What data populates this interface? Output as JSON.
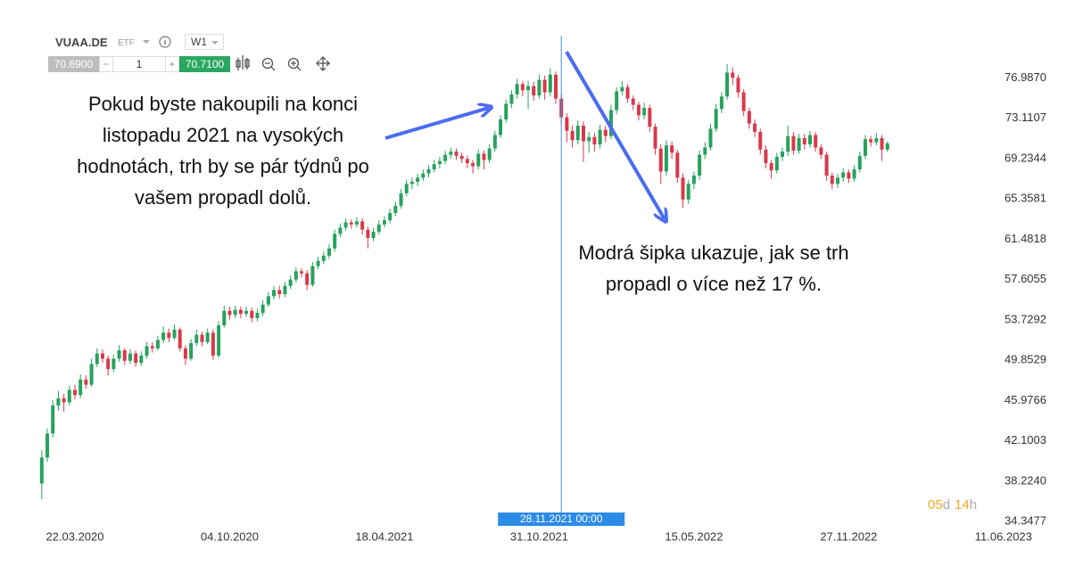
{
  "toolbar": {
    "symbol": "VUAA.DE",
    "kind": "ETF",
    "interval": "W1",
    "bid": "70.6900",
    "quantity": "1",
    "ask": "70.7100"
  },
  "chart_data": {
    "type": "candlestick",
    "up_color": "#26a25d",
    "down_color": "#d8394b",
    "xlim": [
      "2020-01-21",
      "2023-08-01"
    ],
    "xticks": [
      {
        "value": "2020-03-22",
        "label": "22.03.2020"
      },
      {
        "value": "2020-10-04",
        "label": "04.10.2020"
      },
      {
        "value": "2021-04-18",
        "label": "18.04.2021"
      },
      {
        "value": "2021-10-31",
        "label": "31.10.2021"
      },
      {
        "value": "2022-05-15",
        "label": "15.05.2022"
      },
      {
        "value": "2022-11-27",
        "label": "27.11.2022"
      },
      {
        "value": "2023-06-11",
        "label": "11.06.2023"
      }
    ],
    "ylim": [
      33.93,
      81.05
    ],
    "yticks": [
      {
        "value": 76.987,
        "label": "76.9870"
      },
      73.1107,
      69.2344,
      65.3581,
      61.4818,
      57.6055,
      53.7292,
      49.8529,
      45.9766,
      42.1003,
      {
        "value": 38.224,
        "label": "38.2240"
      },
      34.3477
    ],
    "x": [
      "2020-02-09",
      "2020-02-16",
      "2020-02-23",
      "2020-03-01",
      "2020-03-08",
      "2020-03-15",
      "2020-03-22",
      "2020-03-29",
      "2020-04-05",
      "2020-04-12",
      "2020-04-19",
      "2020-04-26",
      "2020-05-03",
      "2020-05-10",
      "2020-05-17",
      "2020-05-24",
      "2020-05-31",
      "2020-06-07",
      "2020-06-14",
      "2020-06-21",
      "2020-06-28",
      "2020-07-05",
      "2020-07-12",
      "2020-07-19",
      "2020-07-26",
      "2020-08-02",
      "2020-08-09",
      "2020-08-16",
      "2020-08-23",
      "2020-08-30",
      "2020-09-06",
      "2020-09-13",
      "2020-09-20",
      "2020-09-27",
      "2020-10-04",
      "2020-10-11",
      "2020-10-18",
      "2020-10-25",
      "2020-11-01",
      "2020-11-08",
      "2020-11-15",
      "2020-11-22",
      "2020-11-29",
      "2020-12-06",
      "2020-12-13",
      "2020-12-20",
      "2020-12-27",
      "2021-01-03",
      "2021-01-10",
      "2021-01-17",
      "2021-01-24",
      "2021-01-31",
      "2021-02-07",
      "2021-02-14",
      "2021-02-21",
      "2021-02-28",
      "2021-03-07",
      "2021-03-14",
      "2021-03-21",
      "2021-03-28",
      "2021-04-04",
      "2021-04-11",
      "2021-04-18",
      "2021-04-25",
      "2021-05-02",
      "2021-05-09",
      "2021-05-16",
      "2021-05-23",
      "2021-05-30",
      "2021-06-06",
      "2021-06-13",
      "2021-06-20",
      "2021-06-27",
      "2021-07-04",
      "2021-07-11",
      "2021-07-18",
      "2021-07-25",
      "2021-08-01",
      "2021-08-08",
      "2021-08-15",
      "2021-08-22",
      "2021-08-29",
      "2021-09-05",
      "2021-09-12",
      "2021-09-19",
      "2021-09-26",
      "2021-10-03",
      "2021-10-10",
      "2021-10-17",
      "2021-10-24",
      "2021-10-31",
      "2021-11-07",
      "2021-11-14",
      "2021-11-21",
      "2021-11-28",
      "2021-12-05",
      "2021-12-12",
      "2021-12-19",
      "2021-12-26",
      "2022-01-02",
      "2022-01-09",
      "2022-01-16",
      "2022-01-23",
      "2022-01-30",
      "2022-02-06",
      "2022-02-13",
      "2022-02-20",
      "2022-02-27",
      "2022-03-06",
      "2022-03-13",
      "2022-03-20",
      "2022-03-27",
      "2022-04-03",
      "2022-04-10",
      "2022-04-17",
      "2022-04-24",
      "2022-05-01",
      "2022-05-08",
      "2022-05-15",
      "2022-05-22",
      "2022-05-29",
      "2022-06-05",
      "2022-06-12",
      "2022-06-19",
      "2022-06-26",
      "2022-07-03",
      "2022-07-10",
      "2022-07-17",
      "2022-07-24",
      "2022-07-31",
      "2022-08-07",
      "2022-08-14",
      "2022-08-21",
      "2022-08-28",
      "2022-09-04",
      "2022-09-11",
      "2022-09-18",
      "2022-09-25",
      "2022-10-02",
      "2022-10-09",
      "2022-10-16",
      "2022-10-23",
      "2022-10-30",
      "2022-11-06",
      "2022-11-13",
      "2022-11-20",
      "2022-11-27",
      "2022-12-04",
      "2022-12-11",
      "2022-12-18",
      "2022-12-25",
      "2023-01-01",
      "2023-01-08",
      "2023-01-15"
    ],
    "ohlc": [
      [
        38.0,
        41.2,
        36.5,
        40.5
      ],
      [
        40.5,
        43.3,
        40.1,
        42.8
      ],
      [
        42.8,
        46.0,
        42.4,
        45.5
      ],
      [
        45.5,
        46.9,
        45.0,
        46.2
      ],
      [
        46.2,
        46.6,
        44.9,
        45.8
      ],
      [
        45.8,
        47.4,
        45.5,
        47.0
      ],
      [
        47.0,
        47.5,
        46.1,
        46.5
      ],
      [
        46.5,
        48.5,
        46.2,
        48.0
      ],
      [
        48.0,
        48.4,
        47.1,
        47.5
      ],
      [
        47.5,
        50.0,
        47.3,
        49.5
      ],
      [
        49.5,
        51.0,
        49.2,
        50.5
      ],
      [
        50.5,
        50.9,
        49.6,
        50.0
      ],
      [
        50.0,
        50.3,
        48.4,
        49.0
      ],
      [
        49.0,
        50.4,
        48.7,
        50.0
      ],
      [
        50.0,
        51.3,
        49.7,
        50.8
      ],
      [
        50.8,
        51.0,
        49.4,
        49.8
      ],
      [
        49.8,
        50.9,
        49.5,
        50.5
      ],
      [
        50.5,
        50.8,
        49.2,
        49.6
      ],
      [
        49.6,
        50.7,
        49.3,
        50.3
      ],
      [
        50.3,
        51.6,
        50.0,
        51.2
      ],
      [
        51.2,
        51.6,
        50.6,
        51.0
      ],
      [
        51.0,
        52.2,
        50.8,
        51.8
      ],
      [
        51.8,
        53.1,
        51.5,
        52.5
      ],
      [
        52.5,
        52.9,
        51.6,
        52.0
      ],
      [
        52.0,
        53.3,
        51.8,
        52.8
      ],
      [
        52.8,
        53.0,
        50.7,
        51.0
      ],
      [
        51.0,
        51.3,
        49.4,
        50.0
      ],
      [
        50.0,
        51.9,
        49.8,
        51.5
      ],
      [
        51.5,
        52.8,
        51.2,
        52.3
      ],
      [
        52.3,
        52.6,
        51.2,
        51.6
      ],
      [
        51.6,
        52.9,
        51.4,
        52.5
      ],
      [
        52.5,
        52.8,
        49.9,
        50.3
      ],
      [
        50.3,
        53.6,
        50.1,
        53.2
      ],
      [
        53.2,
        55.1,
        53.0,
        54.6
      ],
      [
        54.6,
        55.0,
        53.8,
        54.2
      ],
      [
        54.2,
        55.1,
        53.9,
        54.7
      ],
      [
        54.7,
        55.0,
        53.9,
        54.3
      ],
      [
        54.3,
        55.0,
        54.0,
        54.6
      ],
      [
        54.6,
        54.9,
        53.5,
        53.9
      ],
      [
        53.9,
        54.8,
        53.6,
        54.4
      ],
      [
        54.4,
        55.6,
        54.1,
        55.2
      ],
      [
        55.2,
        56.4,
        55.0,
        56.0
      ],
      [
        56.0,
        57.0,
        55.7,
        56.6
      ],
      [
        56.6,
        57.0,
        55.8,
        56.2
      ],
      [
        56.2,
        57.4,
        55.9,
        57.0
      ],
      [
        57.0,
        58.0,
        56.7,
        57.6
      ],
      [
        57.6,
        58.8,
        57.3,
        58.4
      ],
      [
        58.4,
        58.7,
        57.8,
        58.2
      ],
      [
        58.2,
        58.5,
        56.6,
        57.1
      ],
      [
        57.1,
        59.3,
        56.9,
        58.9
      ],
      [
        58.9,
        59.8,
        58.6,
        59.4
      ],
      [
        59.4,
        60.3,
        59.1,
        59.9
      ],
      [
        59.9,
        61.0,
        59.6,
        60.6
      ],
      [
        60.6,
        62.4,
        60.3,
        62.0
      ],
      [
        62.0,
        63.0,
        61.7,
        62.6
      ],
      [
        62.6,
        63.5,
        62.3,
        63.1
      ],
      [
        63.1,
        63.4,
        62.5,
        62.9
      ],
      [
        62.9,
        63.6,
        62.6,
        63.2
      ],
      [
        63.2,
        63.5,
        61.9,
        62.4
      ],
      [
        62.4,
        62.7,
        60.6,
        61.6
      ],
      [
        61.6,
        62.6,
        61.3,
        62.2
      ],
      [
        62.2,
        63.3,
        61.9,
        62.9
      ],
      [
        62.9,
        63.7,
        62.6,
        63.3
      ],
      [
        63.3,
        64.4,
        63.0,
        64.0
      ],
      [
        64.0,
        65.1,
        63.7,
        64.7
      ],
      [
        64.7,
        66.3,
        64.4,
        65.9
      ],
      [
        65.9,
        67.2,
        65.6,
        66.8
      ],
      [
        66.8,
        67.4,
        66.3,
        67.0
      ],
      [
        67.0,
        67.8,
        66.6,
        67.4
      ],
      [
        67.4,
        68.2,
        67.1,
        67.8
      ],
      [
        67.8,
        68.6,
        67.4,
        68.2
      ],
      [
        68.2,
        69.1,
        67.9,
        68.7
      ],
      [
        68.7,
        69.4,
        68.3,
        69.0
      ],
      [
        69.0,
        70.0,
        68.7,
        69.6
      ],
      [
        69.6,
        70.3,
        69.2,
        69.9
      ],
      [
        69.9,
        70.2,
        69.1,
        69.5
      ],
      [
        69.5,
        69.8,
        68.8,
        69.2
      ],
      [
        69.2,
        69.5,
        68.3,
        68.8
      ],
      [
        68.8,
        69.1,
        67.8,
        68.5
      ],
      [
        68.5,
        70.1,
        68.2,
        69.7
      ],
      [
        69.7,
        70.0,
        68.2,
        69.1
      ],
      [
        69.1,
        70.6,
        68.8,
        70.2
      ],
      [
        70.2,
        71.9,
        69.9,
        71.5
      ],
      [
        71.5,
        73.4,
        71.2,
        73.0
      ],
      [
        73.0,
        74.9,
        72.7,
        74.5
      ],
      [
        74.5,
        75.8,
        74.1,
        75.4
      ],
      [
        75.4,
        76.9,
        75.0,
        76.4
      ],
      [
        76.4,
        76.7,
        75.2,
        75.8
      ],
      [
        75.8,
        76.7,
        74.0,
        76.2
      ],
      [
        76.2,
        76.6,
        74.8,
        75.3
      ],
      [
        75.3,
        77.3,
        75.0,
        76.8
      ],
      [
        76.8,
        77.2,
        74.9,
        75.6
      ],
      [
        75.6,
        77.9,
        75.2,
        77.3
      ],
      [
        77.3,
        77.6,
        74.5,
        75.0
      ],
      [
        75.0,
        75.4,
        72.6,
        73.2
      ],
      [
        73.2,
        73.6,
        70.8,
        71.9
      ],
      [
        71.9,
        72.4,
        70.3,
        71.0
      ],
      [
        71.0,
        72.9,
        70.6,
        72.4
      ],
      [
        72.4,
        72.8,
        68.9,
        70.9
      ],
      [
        70.9,
        71.8,
        69.8,
        71.3
      ],
      [
        71.3,
        71.7,
        69.9,
        70.6
      ],
      [
        70.6,
        72.5,
        70.2,
        72.0
      ],
      [
        72.0,
        72.4,
        70.8,
        71.4
      ],
      [
        71.4,
        74.4,
        71.1,
        73.9
      ],
      [
        73.9,
        76.1,
        73.5,
        75.7
      ],
      [
        75.7,
        76.7,
        75.3,
        76.1
      ],
      [
        76.1,
        76.4,
        74.6,
        75.0
      ],
      [
        75.0,
        75.3,
        73.9,
        74.4
      ],
      [
        74.4,
        74.7,
        72.9,
        73.4
      ],
      [
        73.4,
        74.6,
        73.0,
        74.1
      ],
      [
        74.1,
        74.4,
        71.8,
        72.3
      ],
      [
        72.3,
        72.6,
        69.6,
        70.2
      ],
      [
        70.2,
        70.6,
        66.8,
        68.0
      ],
      [
        68.0,
        71.0,
        67.6,
        70.5
      ],
      [
        70.5,
        70.9,
        69.2,
        69.8
      ],
      [
        69.8,
        70.1,
        66.9,
        67.4
      ],
      [
        67.4,
        67.8,
        64.5,
        65.3
      ],
      [
        65.3,
        67.2,
        64.9,
        66.8
      ],
      [
        66.8,
        68.0,
        66.3,
        67.6
      ],
      [
        67.6,
        70.0,
        67.2,
        69.6
      ],
      [
        69.6,
        70.8,
        69.2,
        70.3
      ],
      [
        70.3,
        72.6,
        70.0,
        72.1
      ],
      [
        72.1,
        74.5,
        71.8,
        74.0
      ],
      [
        74.0,
        75.6,
        73.6,
        75.2
      ],
      [
        75.2,
        78.3,
        74.9,
        77.5
      ],
      [
        77.5,
        78.0,
        76.3,
        77.0
      ],
      [
        77.0,
        77.3,
        75.1,
        75.6
      ],
      [
        75.6,
        75.9,
        73.3,
        73.8
      ],
      [
        73.8,
        74.1,
        72.1,
        72.6
      ],
      [
        72.6,
        73.0,
        71.3,
        71.8
      ],
      [
        71.8,
        72.1,
        69.6,
        70.1
      ],
      [
        70.1,
        70.5,
        68.3,
        68.8
      ],
      [
        68.8,
        69.1,
        67.3,
        68.1
      ],
      [
        68.1,
        69.8,
        67.8,
        69.4
      ],
      [
        69.4,
        70.3,
        69.0,
        69.9
      ],
      [
        69.9,
        72.4,
        69.5,
        71.4
      ],
      [
        71.4,
        71.8,
        69.6,
        70.0
      ],
      [
        70.0,
        71.6,
        69.7,
        71.2
      ],
      [
        71.2,
        71.6,
        70.1,
        70.6
      ],
      [
        70.6,
        71.9,
        70.3,
        71.5
      ],
      [
        71.5,
        71.8,
        69.9,
        70.3
      ],
      [
        70.3,
        70.6,
        69.2,
        69.6
      ],
      [
        69.6,
        69.9,
        67.1,
        67.6
      ],
      [
        67.6,
        67.9,
        66.3,
        66.8
      ],
      [
        66.8,
        67.8,
        66.4,
        67.4
      ],
      [
        67.4,
        68.3,
        67.0,
        67.9
      ],
      [
        67.9,
        68.2,
        66.9,
        67.3
      ],
      [
        67.3,
        68.6,
        67.0,
        68.2
      ],
      [
        68.2,
        69.9,
        67.9,
        69.5
      ],
      [
        69.5,
        71.5,
        69.2,
        71.1
      ],
      [
        71.1,
        71.4,
        70.4,
        70.8
      ],
      [
        70.8,
        71.7,
        70.5,
        71.2
      ],
      [
        71.2,
        71.5,
        69.0,
        70.1
      ],
      [
        70.1,
        70.9,
        69.9,
        70.7
      ]
    ],
    "crosshair": {
      "x": "2021-11-28",
      "label": "28.11.2021 00:00"
    },
    "countdown": [
      "05",
      "d",
      "14",
      "h"
    ],
    "annotations": [
      {
        "lines": [
          "Pokud byste nakoupili na konci",
          "listopadu 2021 na vysokých",
          "hodnotách, trh by se pár týdnů po",
          "vašem propadl dolů."
        ]
      },
      {
        "lines": [
          "Modrá šipka ukazuje, jak se trh",
          "propadl o více než 17 %."
        ]
      }
    ]
  }
}
